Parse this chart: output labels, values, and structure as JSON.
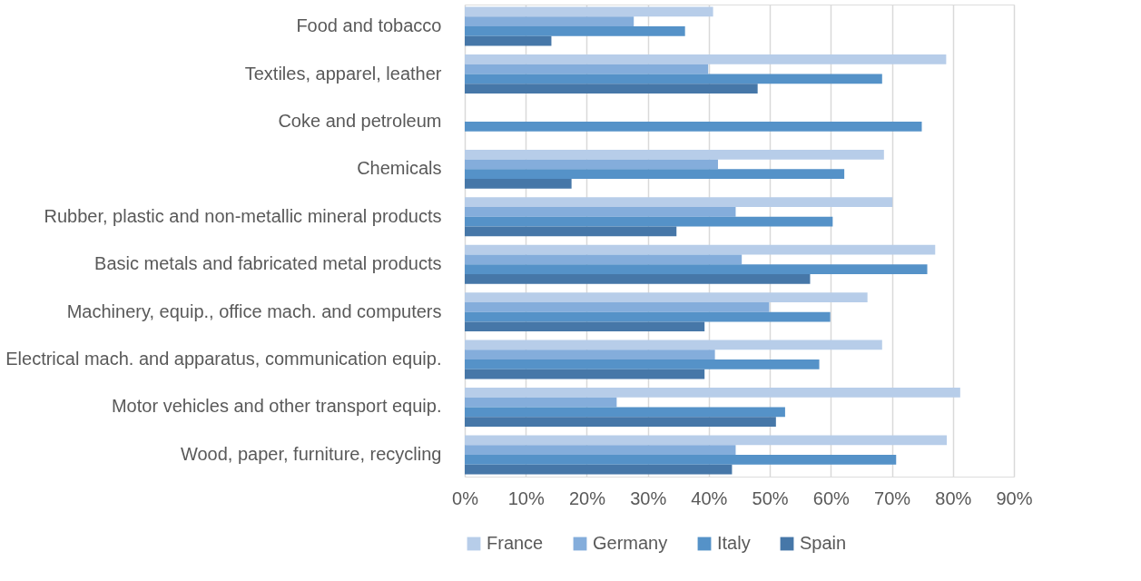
{
  "chart_data": {
    "type": "bar",
    "orientation": "horizontal",
    "categories": [
      "Food and tobacco",
      "Textiles, apparel, leather",
      "Coke and petroleum",
      "Chemicals",
      "Rubber, plastic and non-metallic mineral products",
      "Basic metals and fabricated metal products",
      "Machinery, equip., office mach. and computers",
      "Electrical mach. and apparatus, communication equip.",
      "Motor vehicles and other transport equip.",
      "Wood, paper, furniture, recycling"
    ],
    "series": [
      {
        "name": "France",
        "color": "#b7cde9",
        "values": [
          40.7,
          78.9,
          null,
          68.7,
          70.1,
          77.1,
          66.0,
          68.4,
          81.2,
          79.0
        ]
      },
      {
        "name": "Germany",
        "color": "#84addb",
        "values": [
          27.7,
          39.9,
          null,
          41.5,
          44.4,
          45.4,
          49.9,
          41.0,
          24.9,
          44.4
        ]
      },
      {
        "name": "Italy",
        "color": "#5592c8",
        "values": [
          36.1,
          68.4,
          74.9,
          62.2,
          60.3,
          75.8,
          59.9,
          58.1,
          52.5,
          70.7
        ]
      },
      {
        "name": "Spain",
        "color": "#4677a8",
        "values": [
          14.2,
          48.0,
          null,
          17.5,
          34.7,
          56.6,
          39.3,
          39.3,
          51.0,
          43.8
        ]
      }
    ],
    "xlim": [
      0,
      90
    ],
    "xticks": [
      {
        "value": 0,
        "label": "0%"
      },
      {
        "value": 10,
        "label": "10%"
      },
      {
        "value": 20,
        "label": "20%"
      },
      {
        "value": 30,
        "label": "30%"
      },
      {
        "value": 40,
        "label": "40%"
      },
      {
        "value": 50,
        "label": "50%"
      },
      {
        "value": 60,
        "label": "60%"
      },
      {
        "value": 70,
        "label": "70%"
      },
      {
        "value": 80,
        "label": "80%"
      },
      {
        "value": 90,
        "label": "90%"
      }
    ],
    "grid": "x",
    "legend": "bottom"
  }
}
